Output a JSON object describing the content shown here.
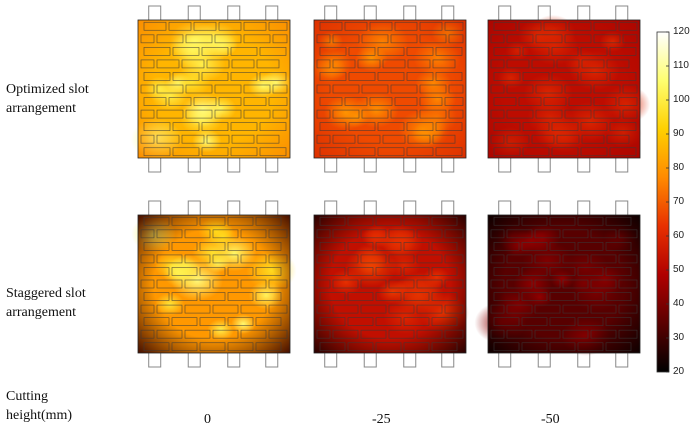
{
  "chart_data": {
    "type": "heatmap",
    "title": "",
    "rows": [
      {
        "label": "Optimized slot arrangement",
        "slot_pattern": "optimized"
      },
      {
        "label": "Staggered slot arrangement",
        "slot_pattern": "staggered"
      }
    ],
    "columns_label": "Cutting height(mm)",
    "columns": [
      "0",
      "-25",
      "-50"
    ],
    "panels": [
      {
        "row": 0,
        "col": 0,
        "base_temperature": 86,
        "hot_spot_temperature": 108,
        "edge_temperature": 72
      },
      {
        "row": 0,
        "col": 1,
        "base_temperature": 67,
        "hot_spot_temperature": 80,
        "edge_temperature": 56
      },
      {
        "row": 0,
        "col": 2,
        "base_temperature": 52,
        "hot_spot_temperature": 62,
        "edge_temperature": 45
      },
      {
        "row": 1,
        "col": 0,
        "base_temperature": 80,
        "hot_spot_temperature": 108,
        "edge_temperature": 28
      },
      {
        "row": 1,
        "col": 1,
        "base_temperature": 53,
        "hot_spot_temperature": 66,
        "edge_temperature": 24
      },
      {
        "row": 1,
        "col": 2,
        "base_temperature": 34,
        "hot_spot_temperature": 44,
        "edge_temperature": 21
      }
    ],
    "colorbar": {
      "min": 20,
      "max": 120,
      "ticks": [
        20,
        30,
        40,
        50,
        60,
        70,
        80,
        90,
        100,
        110,
        120
      ],
      "colormap": "heat",
      "colors": [
        "#000000",
        "#5a0000",
        "#b00000",
        "#e83000",
        "#ff8a00",
        "#ffd000",
        "#ffff70",
        "#ffffff"
      ]
    }
  }
}
